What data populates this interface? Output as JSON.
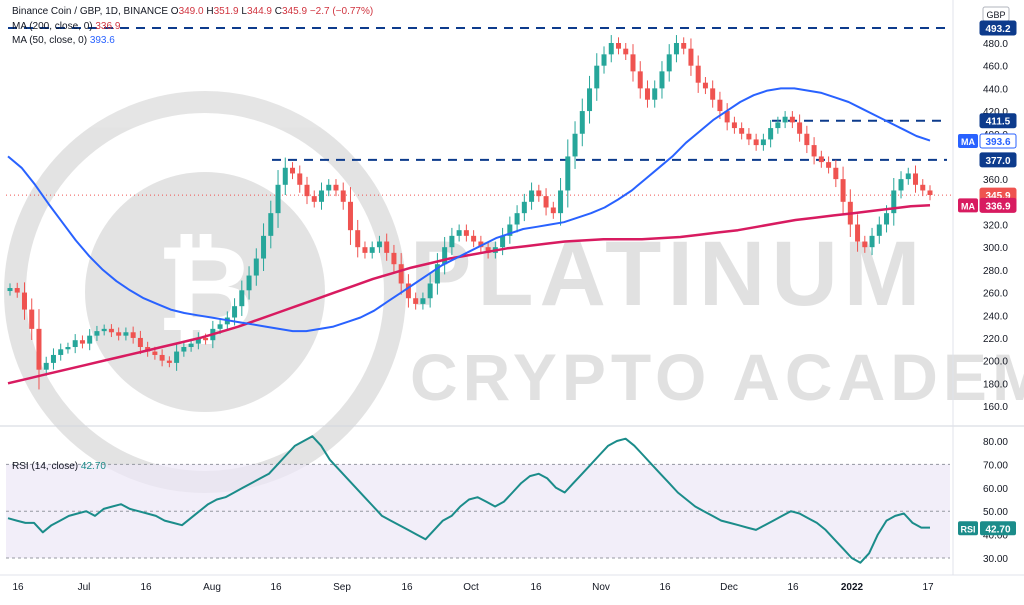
{
  "header": {
    "symbol": "Binance Coin / GBP, 1D, BINANCE",
    "ohlc": [
      {
        "k": "O",
        "v": "349.0"
      },
      {
        "k": "H",
        "v": "351.9"
      },
      {
        "k": "L",
        "v": "344.9"
      },
      {
        "k": "C",
        "v": "345.9"
      }
    ],
    "change": "−2.7 (−0.77%)",
    "ma200_label": "MA (200, close, 0)",
    "ma200_value": "336.9",
    "ma50_label": "MA (50, close, 0)",
    "ma50_value": "393.6",
    "rsi_label": "RSI (14, close)",
    "rsi_value": "42.70"
  },
  "watermark": {
    "line1": "PLATINUM",
    "line2": "CRYPTO ACADEMY"
  },
  "colors": {
    "up": "#26a69a",
    "down": "#ef5350",
    "ma50": "#2962ff",
    "ma200": "#d81b60",
    "rsi": "#1b8c8a",
    "level": "#0d3b8c",
    "price_tag": "#d81b60",
    "ma_tag": "#d81b60"
  },
  "chart_data": [
    {
      "type": "candlestick",
      "title": "Binance Coin / GBP, 1D, BINANCE",
      "currency": "GBP",
      "x_ticks": [
        "16",
        "Jul",
        "16",
        "Aug",
        "16",
        "Sep",
        "16",
        "Oct",
        "16",
        "Nov",
        "16",
        "Dec",
        "16",
        "2022",
        "17"
      ],
      "y_ticks": [
        160,
        180,
        200,
        220,
        240,
        260,
        280,
        300,
        320,
        340,
        360,
        380,
        400,
        420,
        440,
        460,
        480
      ],
      "ylim": [
        150,
        500
      ],
      "close_series": [
        264,
        260,
        245,
        228,
        192,
        198,
        205,
        210,
        212,
        218,
        215,
        222,
        226,
        228,
        225,
        222,
        225,
        220,
        212,
        208,
        205,
        200,
        198,
        208,
        212,
        215,
        220,
        218,
        228,
        232,
        238,
        248,
        262,
        275,
        290,
        310,
        330,
        355,
        370,
        365,
        355,
        345,
        340,
        350,
        355,
        350,
        340,
        315,
        300,
        295,
        300,
        305,
        295,
        285,
        268,
        255,
        250,
        255,
        268,
        285,
        300,
        310,
        315,
        310,
        305,
        300,
        295,
        300,
        310,
        320,
        330,
        340,
        350,
        345,
        335,
        330,
        350,
        380,
        400,
        420,
        440,
        460,
        470,
        480,
        475,
        470,
        455,
        440,
        430,
        440,
        455,
        470,
        480,
        475,
        460,
        445,
        440,
        430,
        420,
        410,
        405,
        400,
        395,
        390,
        395,
        405,
        410,
        415,
        410,
        400,
        390,
        380,
        375,
        370,
        360,
        340,
        320,
        305,
        300,
        310,
        320,
        330,
        350,
        360,
        365,
        355,
        350,
        346
      ],
      "ma50_series": [
        380,
        370,
        355,
        338,
        322,
        306,
        292,
        280,
        270,
        262,
        255,
        250,
        245,
        242,
        240,
        238,
        236,
        234,
        232,
        230,
        228,
        226,
        226,
        228,
        230,
        234,
        238,
        244,
        252,
        260,
        268,
        276,
        284,
        290,
        296,
        302,
        308,
        312,
        316,
        318,
        320,
        322,
        326,
        330,
        335,
        342,
        350,
        360,
        370,
        380,
        392,
        402,
        412,
        420,
        428,
        434,
        438,
        440,
        440,
        438,
        436,
        432,
        428,
        422,
        416,
        410,
        404,
        398,
        394
      ],
      "ma200_series": [
        180,
        184,
        188,
        192,
        196,
        200,
        204,
        208,
        212,
        216,
        220,
        225,
        230,
        236,
        242,
        248,
        254,
        260,
        266,
        272,
        277,
        282,
        286,
        290,
        293,
        296,
        299,
        301,
        303,
        305,
        306,
        307,
        307,
        307,
        308,
        309,
        311,
        313,
        315,
        318,
        321,
        324,
        326,
        328,
        330,
        332,
        334,
        336,
        337
      ],
      "levels": [
        493.2,
        411.5,
        377.0
      ],
      "price_labels": [
        {
          "label": "493.2",
          "value": 493.2
        },
        {
          "label": "411.5",
          "value": 411.5
        },
        {
          "label": "393.6",
          "value": 393.6,
          "tag": "MA",
          "series": "ma50"
        },
        {
          "label": "377.0",
          "value": 377.0
        },
        {
          "label": "345.9",
          "value": 345.9,
          "series": "price"
        },
        {
          "label": "336.9",
          "value": 336.9,
          "tag": "MA",
          "series": "ma200"
        }
      ]
    },
    {
      "type": "line",
      "title": "RSI (14, close)",
      "y_ticks": [
        30,
        40,
        50,
        60,
        70,
        80
      ],
      "ylim": [
        25,
        85
      ],
      "band": [
        30,
        70
      ],
      "series": [
        {
          "values": [
            47,
            46,
            45,
            45,
            41,
            44,
            46,
            48,
            49,
            50,
            48,
            51,
            52,
            53,
            51,
            50,
            49,
            48,
            46,
            45,
            44,
            47,
            50,
            53,
            55,
            56,
            58,
            60,
            62,
            64,
            66,
            70,
            74,
            78,
            80,
            82,
            78,
            72,
            68,
            64,
            60,
            56,
            52,
            48,
            46,
            44,
            42,
            40,
            38,
            42,
            46,
            48,
            52,
            55,
            56,
            54,
            52,
            54,
            58,
            62,
            65,
            66,
            64,
            60,
            58,
            62,
            66,
            70,
            74,
            78,
            80,
            81,
            78,
            74,
            70,
            66,
            62,
            58,
            55,
            52,
            50,
            48,
            46,
            45,
            44,
            43,
            42,
            44,
            46,
            48,
            50,
            49,
            47,
            45,
            42,
            38,
            34,
            30,
            28,
            32,
            40,
            46,
            48,
            49,
            45,
            43,
            43
          ]
        }
      ],
      "value_label": "42.70"
    }
  ]
}
